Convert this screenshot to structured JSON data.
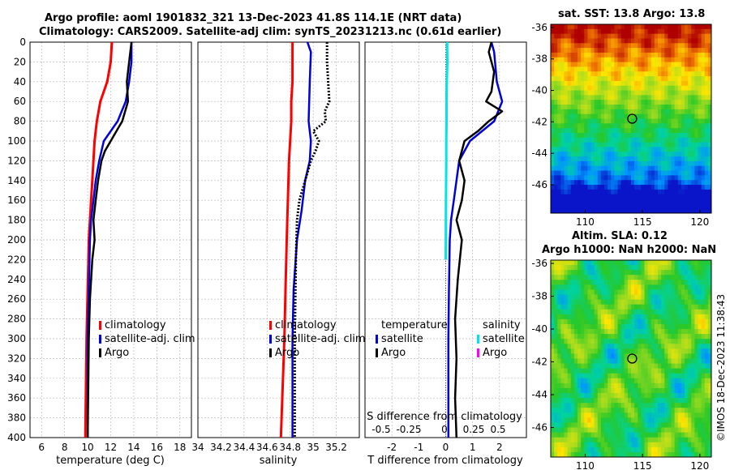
{
  "titles": {
    "line1": "Argo profile: aoml 1901832_321 13-Dec-2023 41.8S 114.1E (NRT data)",
    "line2": "Climatology: CARS2009. Satellite-adj clim: synTS_20231213.nc (0.61d earlier)",
    "sst": "sat. SST: 13.8 Argo: 13.8",
    "sla1": "Altim. SLA: 0.12",
    "sla2": "Argo h1000: NaN h2000: NaN",
    "credit": "©IMOS 18-Dec-2023 11:38:43"
  },
  "colors": {
    "climatology": "#ff0000",
    "satellite": "#0000dd",
    "argo": "#000000",
    "sal_sat_diff": "#00e5e5",
    "sal_argo_diff": "#ff00ff"
  },
  "chart_data": [
    {
      "type": "line",
      "name": "temperature",
      "xlabel": "temperature (deg C)",
      "ylabel": "depth",
      "xlim": [
        5,
        19
      ],
      "ylim": [
        0,
        400
      ],
      "xticks": [
        "6",
        "8",
        "10",
        "12",
        "14",
        "16",
        "18"
      ],
      "yticks": [
        "0",
        "20",
        "40",
        "60",
        "80",
        "100",
        "120",
        "140",
        "160",
        "180",
        "200",
        "220",
        "240",
        "260",
        "280",
        "300",
        "320",
        "340",
        "360",
        "380",
        "400"
      ],
      "legend": [
        "climatology",
        "satellite-adj. clim",
        "Argo"
      ],
      "series": [
        {
          "name": "climatology",
          "x": [
            12.1,
            12.0,
            11.7,
            11.1,
            10.8,
            10.6,
            10.5,
            10.4,
            10.3,
            10.2,
            10.1,
            10.0,
            9.9,
            9.8
          ],
          "y": [
            0,
            20,
            40,
            60,
            80,
            100,
            120,
            140,
            160,
            180,
            200,
            250,
            300,
            400
          ]
        },
        {
          "name": "satellite-adj. clim",
          "x": [
            13.8,
            13.8,
            13.6,
            13.3,
            12.6,
            11.4,
            11.0,
            10.7,
            10.5,
            10.3,
            10.2,
            10.1,
            10.0,
            10.0
          ],
          "y": [
            0,
            20,
            40,
            60,
            80,
            100,
            120,
            140,
            160,
            180,
            200,
            250,
            300,
            400
          ]
        },
        {
          "name": "Argo",
          "x": [
            13.8,
            13.6,
            13.4,
            13.5,
            13.0,
            12.5,
            12.0,
            11.5,
            11.2,
            10.9,
            10.7,
            10.5,
            10.6,
            10.4,
            10.2,
            10.1,
            10.05,
            10.0
          ],
          "y": [
            0,
            20,
            40,
            60,
            80,
            90,
            100,
            110,
            120,
            140,
            160,
            180,
            200,
            220,
            260,
            300,
            350,
            400
          ]
        }
      ]
    },
    {
      "type": "line",
      "name": "salinity",
      "xlabel": "salinity",
      "xlim": [
        34.0,
        35.4
      ],
      "ylim": [
        0,
        400
      ],
      "xticks": [
        "34",
        "34.2",
        "34.4",
        "34.6",
        "34.8",
        "35",
        "35.2"
      ],
      "legend": [
        "climatology",
        "satellite-adj. clim",
        "Argo"
      ],
      "series": [
        {
          "name": "climatology",
          "x": [
            34.82,
            34.82,
            34.82,
            34.81,
            34.81,
            34.8,
            34.79,
            34.78,
            34.77,
            34.76,
            34.75,
            34.72
          ],
          "y": [
            0,
            20,
            40,
            60,
            80,
            100,
            120,
            160,
            200,
            250,
            300,
            400
          ]
        },
        {
          "name": "satellite-adj. clim",
          "x": [
            34.95,
            34.98,
            34.97,
            34.96,
            34.98,
            34.97,
            34.93,
            34.9,
            34.86,
            34.83,
            34.82,
            34.82
          ],
          "y": [
            0,
            10,
            40,
            80,
            100,
            120,
            140,
            170,
            200,
            250,
            300,
            400
          ]
        },
        {
          "name": "Argo",
          "x": [
            35.12,
            35.12,
            35.13,
            35.14,
            35.1,
            35.11,
            35.0,
            35.05,
            35.02,
            34.98,
            34.93,
            34.88,
            34.86,
            34.85,
            34.84,
            34.84
          ],
          "y": [
            0,
            20,
            40,
            60,
            70,
            80,
            90,
            100,
            110,
            120,
            140,
            160,
            180,
            220,
            300,
            400
          ]
        }
      ]
    },
    {
      "type": "line",
      "name": "differences",
      "xlabel": "T difference from climatology",
      "xlabel_top": "S difference from climatology",
      "xlim": [
        -3,
        3
      ],
      "ylim": [
        0,
        400
      ],
      "xticks": [
        "-2",
        "-1",
        "0",
        "1",
        "2"
      ],
      "xticks_s": [
        "-0.5",
        "-0.25",
        "0",
        "0.25",
        "0.5"
      ],
      "legend_temp_title": "temperature",
      "legend_sal_title": "salinity",
      "legend_temp": [
        "satellite",
        "Argo"
      ],
      "legend_sal": [
        "satellite",
        "Argo"
      ],
      "series": [
        {
          "name": "T satellite",
          "x": [
            1.7,
            1.8,
            1.9,
            2.1,
            1.8,
            0.9,
            0.5,
            0.4,
            0.3,
            0.2,
            0.15,
            0.12,
            0.1,
            0.1,
            0.1
          ],
          "y": [
            0,
            10,
            40,
            60,
            80,
            100,
            120,
            140,
            160,
            180,
            200,
            250,
            300,
            350,
            400
          ]
        },
        {
          "name": "T Argo",
          "x": [
            1.7,
            1.6,
            1.8,
            1.7,
            1.5,
            2.1,
            1.6,
            1.2,
            0.7,
            0.5,
            0.7,
            0.6,
            0.4,
            0.6,
            0.45,
            0.35,
            0.4,
            0.35,
            0.4
          ],
          "y": [
            0,
            10,
            30,
            50,
            60,
            70,
            80,
            90,
            100,
            120,
            140,
            160,
            180,
            200,
            240,
            280,
            320,
            360,
            400
          ]
        },
        {
          "name": "S satellite",
          "x": [
            0.05,
            0.06,
            0.04,
            0.03,
            0.03,
            0.02,
            0.02,
            0.01,
            0.0
          ],
          "y": [
            0,
            20,
            40,
            60,
            80,
            100,
            120,
            160,
            220
          ]
        }
      ]
    },
    {
      "type": "heatmap",
      "name": "sst_map",
      "title": "sat. SST: 13.8 Argo: 13.8",
      "xticks": [
        "110",
        "115",
        "120"
      ],
      "yticks": [
        "-36",
        "-38",
        "-40",
        "-42",
        "-44",
        "-46"
      ],
      "xlim": [
        107,
        121
      ],
      "ylim": [
        -47.8,
        -35.8
      ],
      "marker": {
        "lon": 114.1,
        "lat": -41.8
      }
    },
    {
      "type": "heatmap",
      "name": "sla_map",
      "title": "Altim. SLA: 0.12",
      "xticks": [
        "110",
        "115",
        "120"
      ],
      "yticks": [
        "-36",
        "-38",
        "-40",
        "-42",
        "-44",
        "-46"
      ],
      "xlim": [
        107,
        121
      ],
      "ylim": [
        -47.8,
        -35.8
      ],
      "marker": {
        "lon": 114.1,
        "lat": -41.8
      }
    }
  ]
}
